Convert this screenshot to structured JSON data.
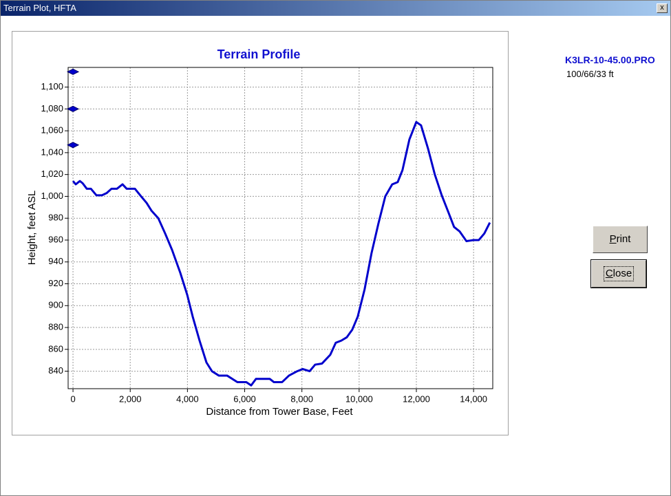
{
  "window": {
    "title": "Terrain Plot, HFTA",
    "close_glyph": "x",
    "file_name": "K3LR-10-45.00.PRO",
    "file_info": "100/66/33 ft",
    "buttons": [
      "Print",
      "Close"
    ]
  },
  "chart_data": {
    "type": "line",
    "title": "Terrain Profile",
    "x_label": "Distance from Tower Base, Feet",
    "y_label": "Height, feet ASL",
    "x": [
      0,
      96,
      240,
      337,
      481,
      625,
      817,
      1010,
      1178,
      1346,
      1538,
      1731,
      1875,
      2163,
      2380,
      2572,
      2740,
      2981,
      3221,
      3462,
      3750,
      3991,
      4183,
      4423,
      4664,
      4856,
      5096,
      5385,
      5746,
      6058,
      6226,
      6395,
      6635,
      6875,
      7020,
      7308,
      7549,
      7837,
      8029,
      8270,
      8462,
      8702,
      8991,
      9183,
      9376,
      9568,
      9760,
      9952,
      10192,
      10433,
      10673,
      10914,
      11155,
      11347,
      11515,
      11756,
      11996,
      12164,
      12405,
      12645,
      12886,
      13126,
      13318,
      13510,
      13751,
      13991,
      14183,
      14375,
      14568
    ],
    "series": [
      {
        "color": "#0000cc",
        "values": [
          1014,
          1011,
          1014,
          1012,
          1007,
          1007,
          1001,
          1001,
          1003,
          1007,
          1007,
          1011,
          1007,
          1007,
          1000,
          994,
          987,
          980,
          966,
          951,
          930,
          910,
          890,
          868,
          848,
          840,
          836,
          836,
          830,
          830,
          827,
          833,
          833,
          833,
          830,
          830,
          836,
          840,
          842,
          840,
          846,
          847,
          855,
          866,
          868,
          871,
          878,
          890,
          915,
          948,
          975,
          1000,
          1011,
          1013,
          1024,
          1052,
          1068,
          1065,
          1044,
          1020,
          1001,
          985,
          972,
          968,
          959,
          960,
          960,
          966,
          976
        ]
      }
    ],
    "markers": {
      "color": "#0000cc",
      "x": [
        0,
        0,
        0
      ],
      "values": [
        1114,
        1080,
        1047
      ]
    },
    "xlim": [
      -170,
      14670
    ],
    "ylim": [
      824,
      1118
    ],
    "xticks": [
      0,
      {
        "value": 2000,
        "label": "2,000"
      },
      {
        "value": 4000,
        "label": "4,000"
      },
      {
        "value": 6000,
        "label": "6,000"
      },
      {
        "value": 8000,
        "label": "8,000"
      },
      {
        "value": 10000,
        "label": "10,000"
      },
      {
        "value": 12000,
        "label": "12,000"
      },
      {
        "value": 14000,
        "label": "14,000"
      }
    ],
    "yticks": [
      840,
      860,
      880,
      900,
      920,
      940,
      960,
      980,
      {
        "value": 1000,
        "label": "1,000"
      },
      {
        "value": 1020,
        "label": "1,020"
      },
      {
        "value": 1040,
        "label": "1,040"
      },
      {
        "value": 1060,
        "label": "1,060"
      },
      {
        "value": 1080,
        "label": "1,080"
      },
      {
        "value": 1100,
        "label": "1,100"
      }
    ],
    "grid": true
  }
}
